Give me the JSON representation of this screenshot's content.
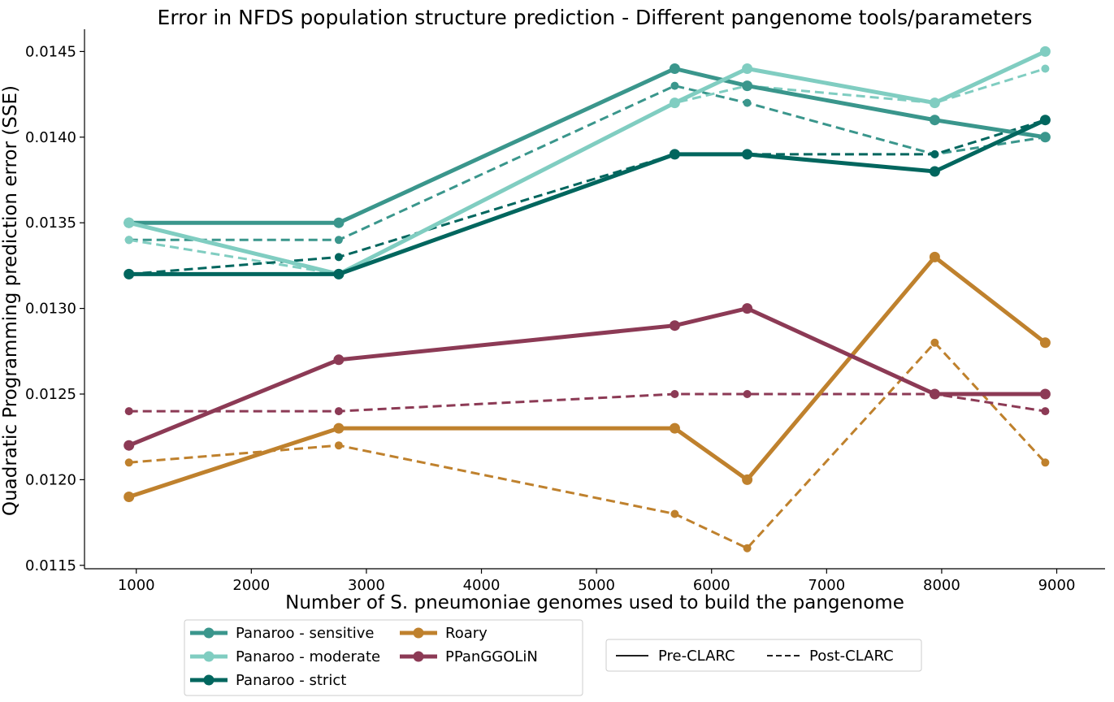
{
  "chart_data": {
    "type": "line",
    "title": "Error in NFDS population structure prediction - Different pangenome tools/parameters",
    "xlabel": "Number of S. pneumoniae genomes used to build the pangenome",
    "ylabel": "Quadratic Programming prediction error (SSE)",
    "xlim": [
      550,
      9420
    ],
    "ylim": [
      0.01148,
      0.01463
    ],
    "x_ticks": [
      1000,
      2000,
      3000,
      4000,
      5000,
      6000,
      7000,
      8000,
      9000
    ],
    "y_ticks": [
      0.0115,
      0.012,
      0.0125,
      0.013,
      0.0135,
      0.014,
      0.0145
    ],
    "x_tick_labels": [
      "1000",
      "2000",
      "3000",
      "4000",
      "5000",
      "6000",
      "7000",
      "8000",
      "9000"
    ],
    "y_tick_labels": [
      "0.0115",
      "0.0120",
      "0.0125",
      "0.0130",
      "0.0135",
      "0.0140",
      "0.0145"
    ],
    "x": [
      936,
      2760,
      5680,
      6310,
      7940,
      8900
    ],
    "series": [
      {
        "name": "Panaroo - sensitive",
        "color": "#3a968c",
        "style": "solid",
        "values": [
          0.0135,
          0.0135,
          0.0144,
          0.0143,
          0.0141,
          0.014
        ]
      },
      {
        "name": "Panaroo - sensitive",
        "color": "#3a968c",
        "style": "dashed",
        "values": [
          0.0134,
          0.0134,
          0.0143,
          0.0142,
          0.0139,
          0.014
        ]
      },
      {
        "name": "Panaroo - moderate",
        "color": "#80cdc1",
        "style": "solid",
        "values": [
          0.0135,
          0.0132,
          0.0142,
          0.0144,
          0.0142,
          0.0145
        ]
      },
      {
        "name": "Panaroo - moderate",
        "color": "#80cdc1",
        "style": "dashed",
        "values": [
          0.0134,
          0.0132,
          0.0142,
          0.0143,
          0.0142,
          0.0144
        ]
      },
      {
        "name": "Panaroo - strict",
        "color": "#01665e",
        "style": "solid",
        "values": [
          0.0132,
          0.0132,
          0.0139,
          0.0139,
          0.0138,
          0.0141
        ]
      },
      {
        "name": "Panaroo - strict",
        "color": "#01665e",
        "style": "dashed",
        "values": [
          0.0132,
          0.0133,
          0.0139,
          0.0139,
          0.0139,
          0.0141
        ]
      },
      {
        "name": "Roary",
        "color": "#bf812d",
        "style": "solid",
        "values": [
          0.0119,
          0.0123,
          0.0123,
          0.012,
          0.0133,
          0.0128
        ]
      },
      {
        "name": "Roary",
        "color": "#bf812d",
        "style": "dashed",
        "values": [
          0.0121,
          0.0122,
          0.0118,
          0.0116,
          0.0128,
          0.0121
        ]
      },
      {
        "name": "PPanGGOLiN",
        "color": "#8c3a55",
        "style": "solid",
        "values": [
          0.0122,
          0.0127,
          0.0129,
          0.013,
          0.0125,
          0.0125
        ]
      },
      {
        "name": "PPanGGOLiN",
        "color": "#8c3a55",
        "style": "dashed",
        "values": [
          0.0124,
          0.0124,
          0.0125,
          0.0125,
          0.0125,
          0.0124
        ]
      }
    ],
    "grid": false,
    "legend_tools": {
      "placement": "bottom-left, below axes",
      "entries": [
        {
          "label": "Panaroo - sensitive",
          "color": "#3a968c"
        },
        {
          "label": "Panaroo - moderate",
          "color": "#80cdc1"
        },
        {
          "label": "Panaroo - strict",
          "color": "#01665e"
        },
        {
          "label": "Roary",
          "color": "#bf812d"
        },
        {
          "label": "PPanGGOLiN",
          "color": "#8c3a55"
        }
      ]
    },
    "legend_styles": {
      "placement": "bottom-center, below axes",
      "entries": [
        {
          "label": "Pre-CLARC",
          "style": "solid"
        },
        {
          "label": "Post-CLARC",
          "style": "dashed"
        }
      ]
    }
  }
}
